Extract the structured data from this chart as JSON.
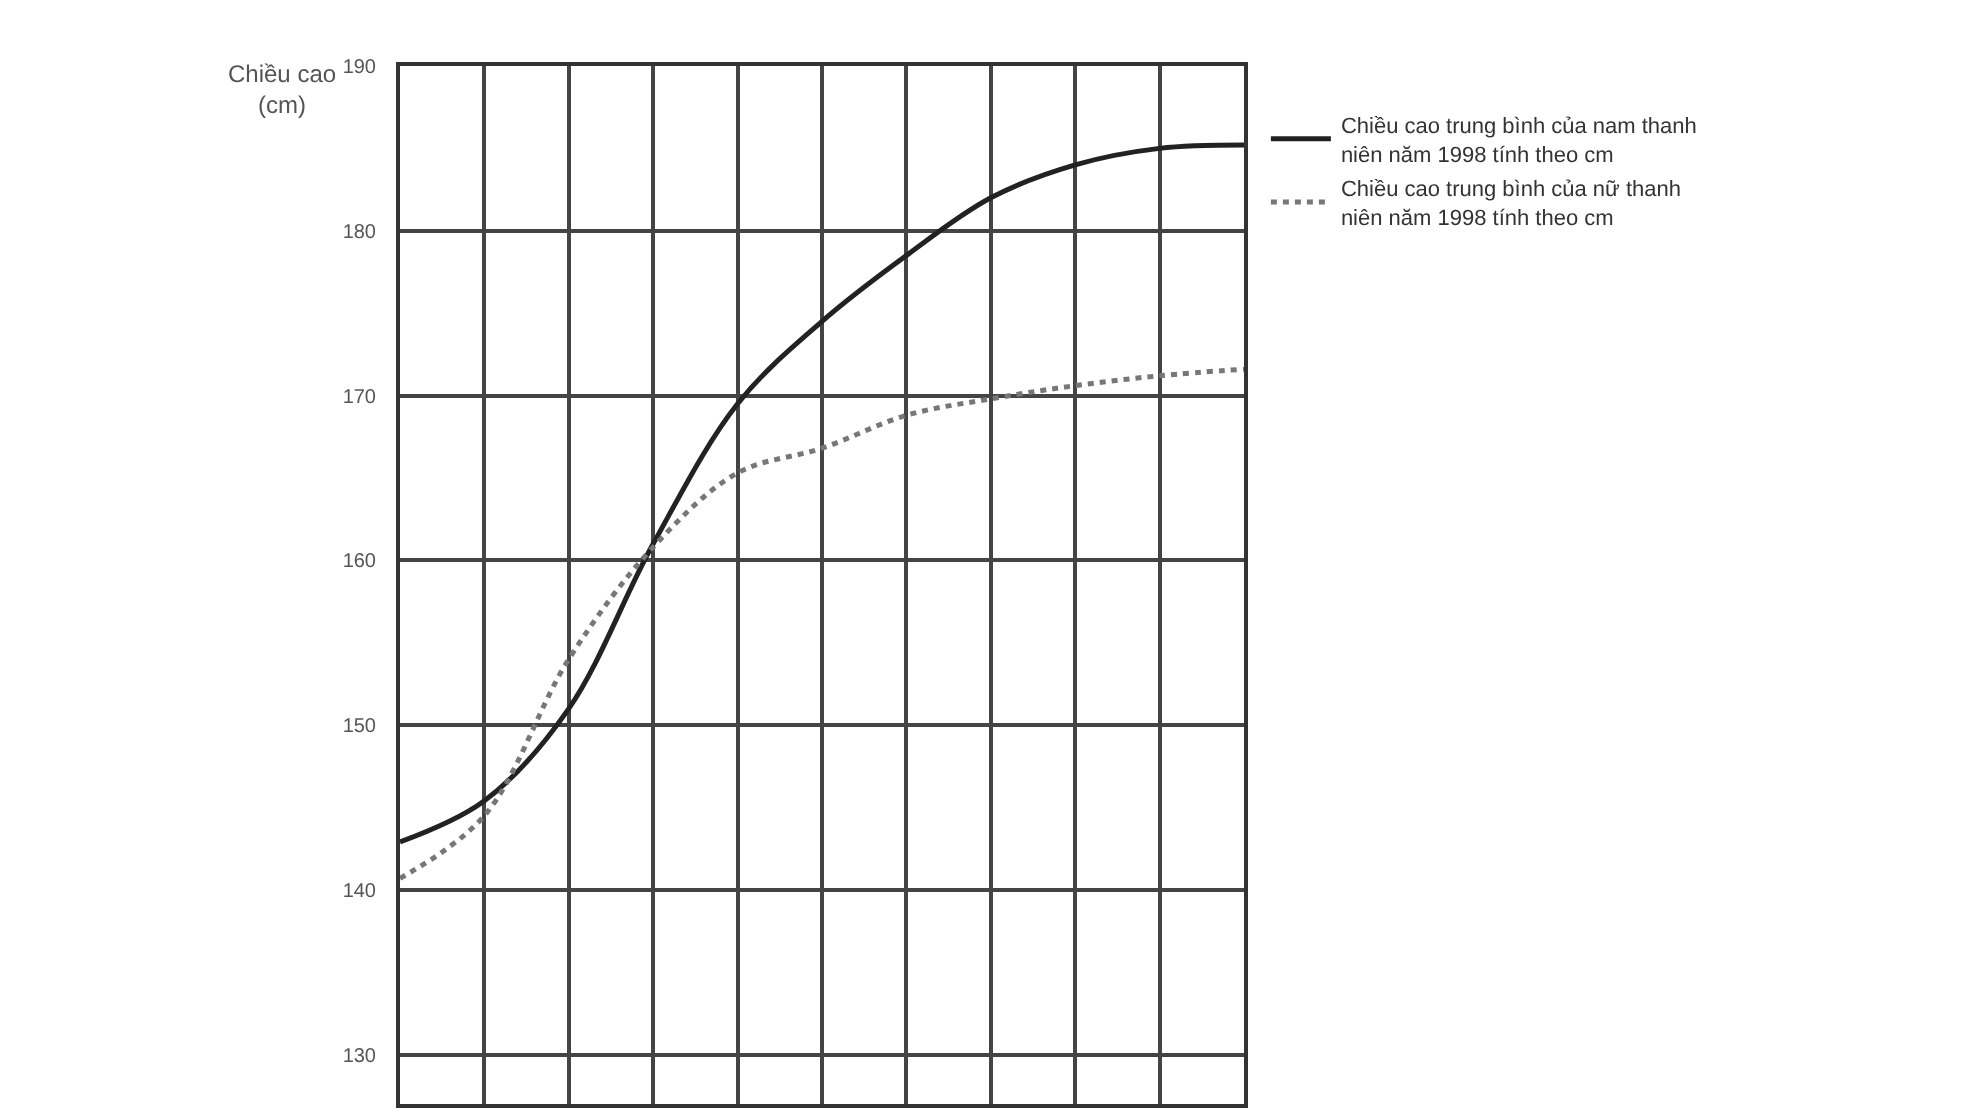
{
  "chart_data": {
    "type": "line",
    "ylabel": "Chiều cao (cm)",
    "categories": [
      null,
      null,
      null,
      null,
      null,
      null,
      null,
      null,
      null,
      null,
      null
    ],
    "series": [
      {
        "name": "Chiều cao trung bình của nam thanh niên năm 1998 tính theo cm",
        "color": "#222222",
        "line_style": "solid",
        "values": [
          142.9,
          145.4,
          151,
          161,
          169.5,
          174.5,
          178.5,
          182,
          184,
          185,
          185.2
        ]
      },
      {
        "name": "Chiều cao trung bình của nữ thanh niên năm 1998 tính theo cm",
        "color": "#777777",
        "line_style": "dotted",
        "values": [
          140.7,
          144.5,
          154,
          160.8,
          165.3,
          166.8,
          168.8,
          169.8,
          170.6,
          171.2,
          171.6
        ]
      }
    ],
    "ylim": [
      127,
      190
    ],
    "yticks": [
      130,
      140,
      150,
      160,
      170,
      180,
      190
    ],
    "grid": true,
    "legend": "right",
    "marker": "none"
  }
}
